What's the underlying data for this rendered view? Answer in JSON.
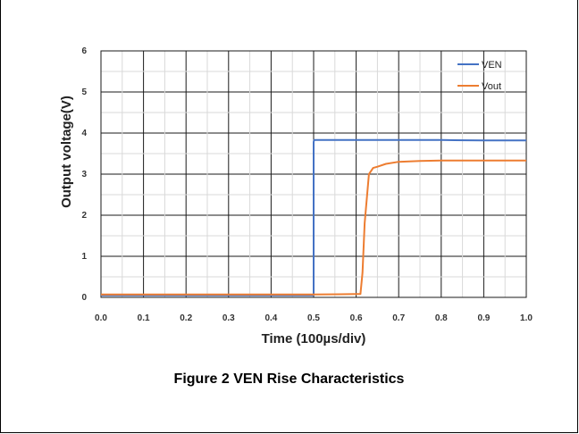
{
  "caption": "Figure 2 VEN Rise Characteristics",
  "chart_data": {
    "type": "line",
    "title": "",
    "xlabel": "Time (100µs/div)",
    "ylabel": "Output voltage(V)",
    "xlim": [
      0.0,
      1.0
    ],
    "ylim": [
      0,
      6
    ],
    "x_ticks": [
      "0.0",
      "0.1",
      "0.2",
      "0.3",
      "0.4",
      "0.5",
      "0.6",
      "0.7",
      "0.8",
      "0.9",
      "1.0"
    ],
    "y_ticks": [
      "0",
      "1",
      "2",
      "3",
      "4",
      "5",
      "6"
    ],
    "grid": true,
    "legend_position": "top-right",
    "series": [
      {
        "name": "VEN",
        "color": "#4472C4",
        "x": [
          0.0,
          0.5,
          0.5,
          0.501,
          0.55,
          0.6,
          0.7,
          0.8,
          0.9,
          1.0
        ],
        "y": [
          0.05,
          0.05,
          3.78,
          3.83,
          3.83,
          3.83,
          3.83,
          3.83,
          3.82,
          3.82
        ]
      },
      {
        "name": "Vout",
        "color": "#ED7D31",
        "x": [
          0.0,
          0.1,
          0.2,
          0.3,
          0.4,
          0.5,
          0.6,
          0.61,
          0.615,
          0.62,
          0.63,
          0.64,
          0.65,
          0.67,
          0.7,
          0.75,
          0.8,
          0.9,
          1.0
        ],
        "y": [
          0.07,
          0.07,
          0.07,
          0.07,
          0.07,
          0.07,
          0.08,
          0.08,
          0.6,
          1.8,
          3.0,
          3.15,
          3.18,
          3.25,
          3.3,
          3.32,
          3.33,
          3.33,
          3.33
        ]
      }
    ]
  }
}
